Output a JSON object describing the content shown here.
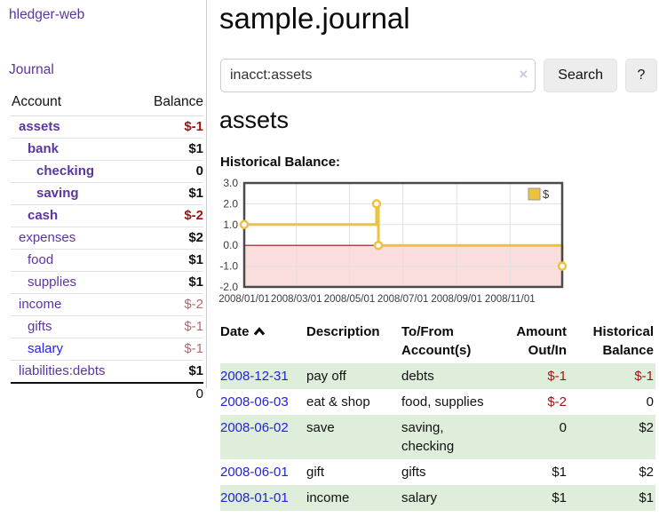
{
  "sidebar": {
    "brand": "hledger-web",
    "nav_journal": "Journal",
    "accounts": {
      "col_account": "Account",
      "col_balance": "Balance",
      "items": [
        {
          "name": "assets",
          "balance": "$-1"
        },
        {
          "name": "bank",
          "balance": "$1"
        },
        {
          "name": "checking",
          "balance": "0"
        },
        {
          "name": "saving",
          "balance": "$1"
        },
        {
          "name": "cash",
          "balance": "$-2"
        },
        {
          "name": "expenses",
          "balance": "$2"
        },
        {
          "name": "food",
          "balance": "$1"
        },
        {
          "name": "supplies",
          "balance": "$1"
        },
        {
          "name": "income",
          "balance": "$-2"
        },
        {
          "name": "gifts",
          "balance": "$-1"
        },
        {
          "name": "salary",
          "balance": "$-1"
        },
        {
          "name": "liabilities:debts",
          "balance": "$1"
        }
      ],
      "total": "0"
    }
  },
  "main": {
    "title": "sample.journal",
    "search": {
      "query": "inacct:assets",
      "clear_icon": "×",
      "button": "Search",
      "help": "?"
    },
    "account_heading": "assets",
    "chart_label": "Historical Balance:",
    "journal": {
      "headers": {
        "date": "Date",
        "sort_icon": "caret-up",
        "description": "Description",
        "accounts": "To/From Account(s)",
        "amount": "Amount Out/In",
        "balance": "Historical Balance"
      },
      "rows": [
        {
          "date": "2008-12-31",
          "description": "pay off",
          "accounts": "debts",
          "amount": "$-1",
          "balance": "$-1"
        },
        {
          "date": "2008-06-03",
          "description": "eat & shop",
          "accounts": "food, supplies",
          "amount": "$-2",
          "balance": "0"
        },
        {
          "date": "2008-06-02",
          "description": "save",
          "accounts": "saving, checking",
          "amount": "0",
          "balance": "$2"
        },
        {
          "date": "2008-06-01",
          "description": "gift",
          "accounts": "gifts",
          "amount": "$1",
          "balance": "$2"
        },
        {
          "date": "2008-01-01",
          "description": "income",
          "accounts": "salary",
          "amount": "$1",
          "balance": "$1"
        }
      ]
    }
  },
  "chart_data": {
    "type": "line",
    "step": true,
    "title": "Historical Balance",
    "series": [
      {
        "name": "$",
        "color": "#edc240",
        "points": [
          {
            "date": "2008-01-01",
            "x": 0.0,
            "y": 1
          },
          {
            "date": "2008-06-01",
            "x": 0.416,
            "y": 2
          },
          {
            "date": "2008-06-03",
            "x": 0.422,
            "y": 0
          },
          {
            "date": "2008-12-31",
            "x": 1.0,
            "y": -1
          }
        ]
      }
    ],
    "x_ticks": [
      {
        "label": "2008/01/01",
        "f": 0.0
      },
      {
        "label": "2008/03/01",
        "f": 0.164
      },
      {
        "label": "2008/05/01",
        "f": 0.331
      },
      {
        "label": "2008/07/01",
        "f": 0.499
      },
      {
        "label": "2008/09/01",
        "f": 0.668
      },
      {
        "label": "2008/11/01",
        "f": 0.836
      }
    ],
    "y_ticks": [
      3.0,
      2.0,
      1.0,
      0.0,
      -1.0,
      -2.0
    ],
    "ylim": [
      -2,
      3
    ],
    "xlim_dates": [
      "2008-01-01",
      "2008-12-31"
    ],
    "legend_position": "top-right",
    "grid": true,
    "colors": {
      "negative_fill": "#fadddd",
      "zero_line": "#8b1a1a",
      "grid": "#e0e0e0",
      "border": "#4a4a4a",
      "label": "#3c3c3c",
      "legend_text": "#333333",
      "legend_border": "#999999"
    }
  }
}
